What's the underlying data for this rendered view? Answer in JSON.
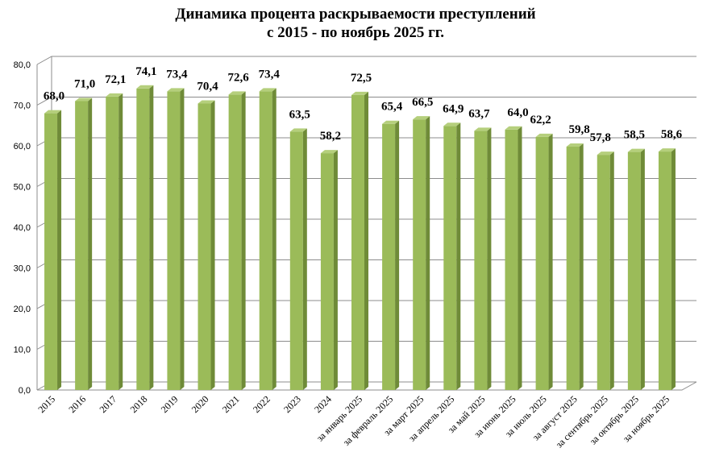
{
  "chart_data": {
    "type": "bar",
    "title_line1": "Динамика процента раскрываемости преступлений",
    "title_line2": "с 2015 - по ноябрь 2025 гг.",
    "categories": [
      "2015",
      "2016",
      "2017",
      "2018",
      "2019",
      "2020",
      "2021",
      "2022",
      "2023",
      "2024",
      "за январь 2025",
      "за февраль 2025",
      "за март 2025",
      "за апрель 2025",
      "за май 2025",
      "за июнь 2025",
      "за июль 2025",
      "за август 2025",
      "за сентябрь 2025",
      "за октябрь 2025",
      "за ноябрь 2025"
    ],
    "values": [
      68.0,
      71.0,
      72.1,
      74.1,
      73.4,
      70.4,
      72.6,
      73.4,
      63.5,
      58.2,
      72.5,
      65.4,
      66.5,
      64.9,
      63.7,
      64.0,
      62.2,
      59.8,
      57.8,
      58.5,
      58.6
    ],
    "data_labels": [
      "68,0",
      "71,0",
      "72,1",
      "74,1",
      "73,4",
      "70,4",
      "72,6",
      "73,4",
      "63,5",
      "58,2",
      "72,5",
      "65,4",
      "66,5",
      "64,9",
      "63,7",
      "64,0",
      "62,2",
      "59,8",
      "57,8",
      "58,5",
      "58,6"
    ],
    "yticks": [
      "0,0",
      "10,0",
      "20,0",
      "30,0",
      "40,0",
      "50,0",
      "60,0",
      "70,0",
      "80,0"
    ],
    "ylim": [
      0,
      80
    ],
    "grid": true,
    "legend": "none",
    "bar_color": "#9bbb59",
    "bar_side_color": "#6f8b38",
    "bar_top_color": "#b5cf7c"
  }
}
